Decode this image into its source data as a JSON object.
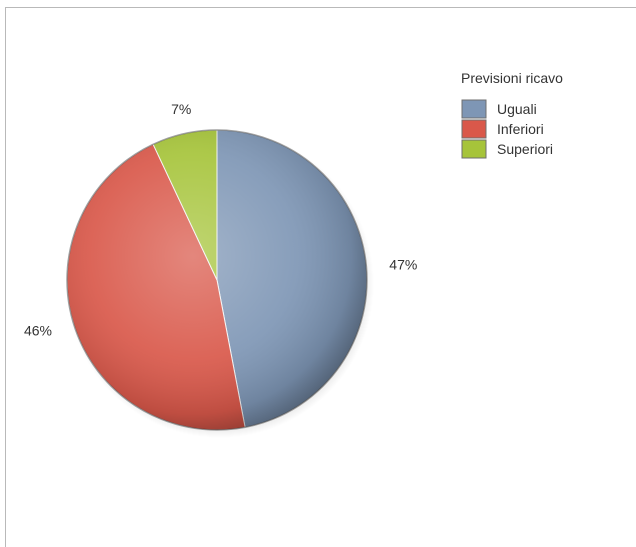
{
  "chart_data": {
    "type": "pie",
    "legend_title": "Previsioni ricavo",
    "legend_position": "top-right",
    "slices": [
      {
        "label": "Uguali",
        "value": 47,
        "value_label": "47%",
        "color": "#7e96b5"
      },
      {
        "label": "Inferiori",
        "value": 46,
        "value_label": "46%",
        "color": "#d9584a"
      },
      {
        "label": "Superiori",
        "value": 7,
        "value_label": "7%",
        "color": "#a6c43a"
      }
    ]
  }
}
